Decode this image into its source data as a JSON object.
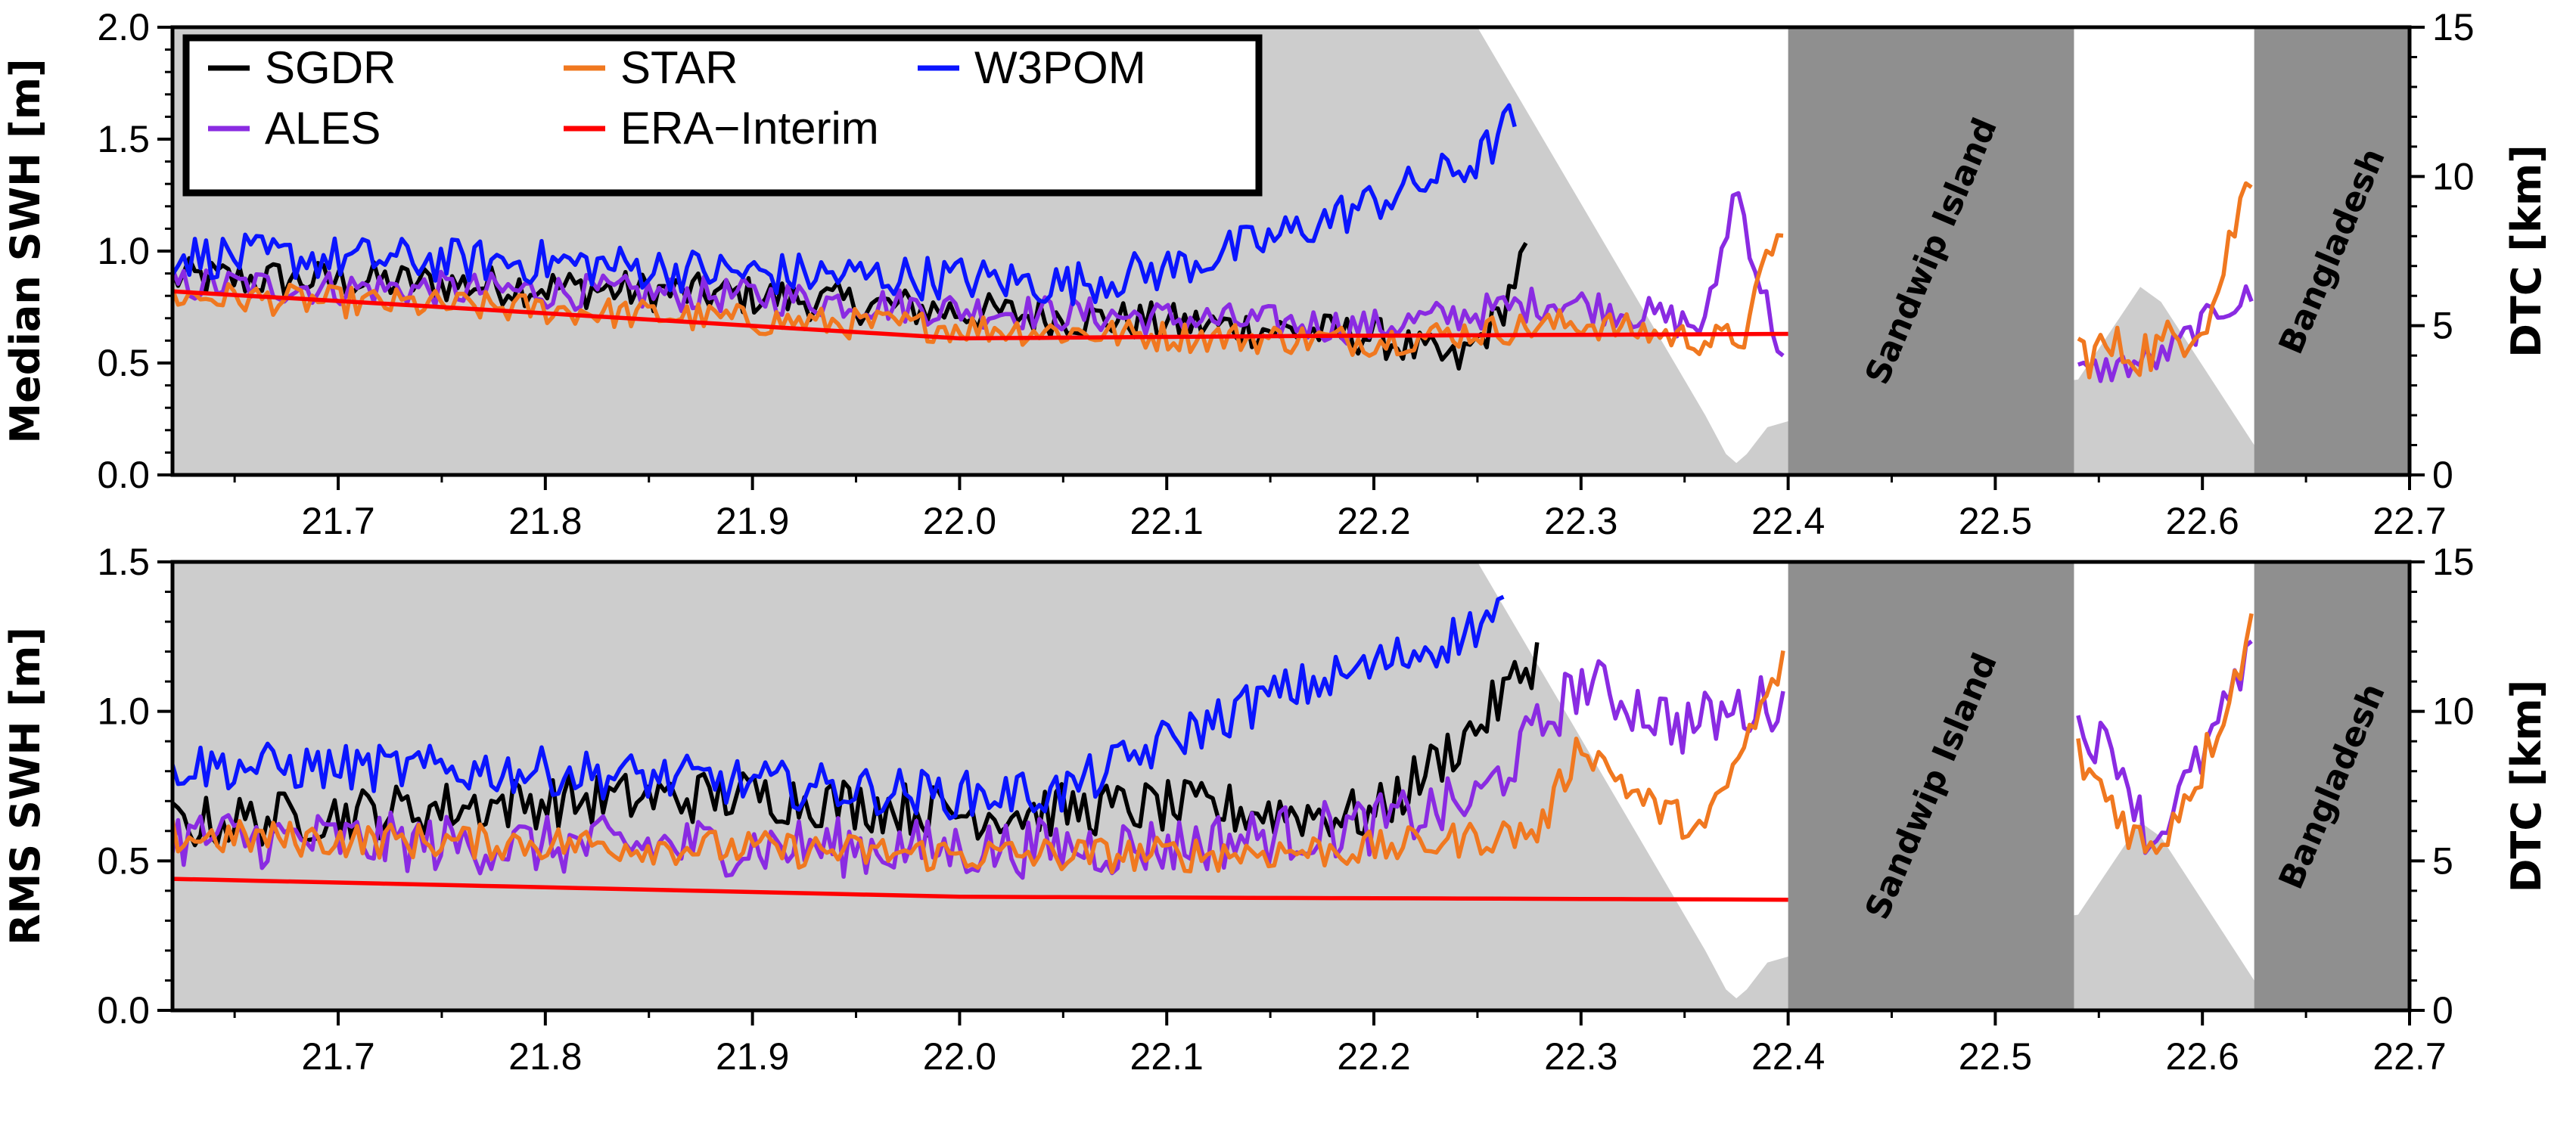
{
  "chart_data": [
    {
      "type": "line",
      "panel": "top",
      "ylabel": "Median SWH [m]",
      "y2label": "DTC [km]",
      "xlim": [
        21.62,
        22.7
      ],
      "ylim": [
        0.0,
        2.0
      ],
      "y2lim": [
        0,
        15
      ],
      "xticks": [
        "21.7",
        "21.8",
        "21.9",
        "22.0",
        "22.1",
        "22.2",
        "22.3",
        "22.4",
        "22.5",
        "22.6",
        "22.7"
      ],
      "yticks": [
        "0.0",
        "0.5",
        "1.0",
        "1.5",
        "2.0"
      ],
      "y2ticks": [
        "0",
        "5",
        "10",
        "15"
      ],
      "legend_position": "top-left",
      "land_regions": [
        {
          "label": "Sandwip Island",
          "x": [
            22.4,
            22.538
          ]
        },
        {
          "label": "Bangladesh",
          "x": [
            22.625,
            22.7
          ]
        }
      ],
      "dtc": {
        "x": [
          21.62,
          22.25,
          22.36,
          22.37,
          22.375,
          22.38,
          22.39,
          22.4,
          22.54,
          22.57,
          22.58,
          22.625
        ],
        "y": [
          15,
          15,
          2.0,
          0.7,
          0.4,
          0.7,
          1.6,
          1.8,
          3.2,
          6.3,
          5.8,
          1.0
        ]
      },
      "series": [
        {
          "name": "SGDR",
          "color": "#000000",
          "segments": [
            {
              "x0": 21.62,
              "x1": 22.275,
              "pts": [
                [
                  21.62,
                  0.88
                ],
                [
                  21.7,
                  0.87
                ],
                [
                  21.8,
                  0.84
                ],
                [
                  21.9,
                  0.8
                ],
                [
                  22.0,
                  0.73
                ],
                [
                  22.1,
                  0.68
                ],
                [
                  22.2,
                  0.62
                ],
                [
                  22.24,
                  0.5
                ],
                [
                  22.26,
                  0.7
                ],
                [
                  22.275,
                  1.03
                ]
              ],
              "noise": 0.09
            }
          ]
        },
        {
          "name": "ALES",
          "color": "#8a2be2",
          "segments": [
            {
              "x0": 21.62,
              "x1": 22.4,
              "pts": [
                [
                  21.62,
                  0.85
                ],
                [
                  21.8,
                  0.82
                ],
                [
                  21.9,
                  0.8
                ],
                [
                  22.0,
                  0.74
                ],
                [
                  22.1,
                  0.7
                ],
                [
                  22.2,
                  0.66
                ],
                [
                  22.29,
                  0.78
                ],
                [
                  22.33,
                  0.72
                ],
                [
                  22.36,
                  0.66
                ],
                [
                  22.375,
                  1.3
                ],
                [
                  22.385,
                  0.9
                ],
                [
                  22.4,
                  0.45
                ]
              ],
              "noise": 0.08
            },
            {
              "x0": 22.54,
              "x1": 22.625,
              "pts": [
                [
                  22.54,
                  0.45
                ],
                [
                  22.58,
                  0.52
                ],
                [
                  22.61,
                  0.75
                ],
                [
                  22.625,
                  0.8
                ]
              ],
              "noise": 0.07
            }
          ]
        },
        {
          "name": "STAR",
          "color": "#f07820",
          "segments": [
            {
              "x0": 21.62,
              "x1": 22.4,
              "pts": [
                [
                  21.62,
                  0.8
                ],
                [
                  21.8,
                  0.74
                ],
                [
                  21.9,
                  0.69
                ],
                [
                  22.0,
                  0.66
                ],
                [
                  22.1,
                  0.62
                ],
                [
                  22.2,
                  0.6
                ],
                [
                  22.3,
                  0.68
                ],
                [
                  22.36,
                  0.6
                ],
                [
                  22.38,
                  0.62
                ],
                [
                  22.39,
                  1.0
                ],
                [
                  22.4,
                  1.1
                ]
              ],
              "noise": 0.07
            },
            {
              "x0": 22.54,
              "x1": 22.625,
              "pts": [
                [
                  22.54,
                  0.55
                ],
                [
                  22.58,
                  0.56
                ],
                [
                  22.605,
                  0.75
                ],
                [
                  22.615,
                  1.1
                ],
                [
                  22.625,
                  1.4
                ]
              ],
              "noise": 0.12
            }
          ]
        },
        {
          "name": "ERA-Interim",
          "color": "#ff0000",
          "segments": [
            {
              "x0": 21.62,
              "x1": 22.4,
              "pts": [
                [
                  21.62,
                  0.82
                ],
                [
                  21.75,
                  0.75
                ],
                [
                  22.0,
                  0.61
                ],
                [
                  22.15,
                  0.62
                ],
                [
                  22.4,
                  0.63
                ]
              ],
              "noise": 0
            }
          ]
        },
        {
          "name": "W3POM",
          "color": "#0a14ff",
          "segments": [
            {
              "x0": 21.62,
              "x1": 22.27,
              "pts": [
                [
                  21.62,
                  0.98
                ],
                [
                  21.8,
                  0.95
                ],
                [
                  21.9,
                  0.9
                ],
                [
                  22.0,
                  0.88
                ],
                [
                  22.05,
                  0.85
                ],
                [
                  22.1,
                  0.92
                ],
                [
                  22.15,
                  1.05
                ],
                [
                  22.2,
                  1.22
                ],
                [
                  22.25,
                  1.4
                ],
                [
                  22.27,
                  1.62
                ]
              ],
              "noise": 0.1
            }
          ]
        }
      ]
    },
    {
      "type": "line",
      "panel": "bottom",
      "ylabel": "RMS SWH [m]",
      "y2label": "DTC [km]",
      "xlim": [
        21.62,
        22.7
      ],
      "ylim": [
        0.0,
        1.5
      ],
      "y2lim": [
        0,
        15
      ],
      "xticks": [
        "21.7",
        "21.8",
        "21.9",
        "22.0",
        "22.1",
        "22.2",
        "22.3",
        "22.4",
        "22.5",
        "22.6",
        "22.7"
      ],
      "yticks": [
        "0.0",
        "0.5",
        "1.0",
        "1.5"
      ],
      "y2ticks": [
        "0",
        "5",
        "10",
        "15"
      ],
      "land_regions": [
        {
          "label": "Sandwip Island",
          "x": [
            22.4,
            22.538
          ]
        },
        {
          "label": "Bangladesh",
          "x": [
            22.625,
            22.7
          ]
        }
      ],
      "dtc": {
        "x": [
          21.62,
          22.25,
          22.36,
          22.37,
          22.375,
          22.38,
          22.39,
          22.4,
          22.54,
          22.57,
          22.58,
          22.625
        ],
        "y": [
          15,
          15,
          2.0,
          0.7,
          0.4,
          0.7,
          1.6,
          1.8,
          3.2,
          6.3,
          5.8,
          1.0
        ]
      },
      "series": [
        {
          "name": "SGDR",
          "color": "#000000",
          "segments": [
            {
              "x0": 21.62,
              "x1": 22.28,
              "pts": [
                [
                  21.62,
                  0.62
                ],
                [
                  21.8,
                  0.7
                ],
                [
                  21.9,
                  0.72
                ],
                [
                  22.0,
                  0.66
                ],
                [
                  22.1,
                  0.68
                ],
                [
                  22.2,
                  0.65
                ],
                [
                  22.25,
                  0.95
                ],
                [
                  22.28,
                  1.2
                ]
              ],
              "noise": 0.09
            }
          ]
        },
        {
          "name": "ALES",
          "color": "#8a2be2",
          "segments": [
            {
              "x0": 21.62,
              "x1": 22.4,
              "pts": [
                [
                  21.62,
                  0.58
                ],
                [
                  21.8,
                  0.55
                ],
                [
                  21.9,
                  0.55
                ],
                [
                  22.0,
                  0.54
                ],
                [
                  22.1,
                  0.55
                ],
                [
                  22.2,
                  0.62
                ],
                [
                  22.25,
                  0.7
                ],
                [
                  22.3,
                  1.1
                ],
                [
                  22.35,
                  0.95
                ],
                [
                  22.4,
                  1.05
                ]
              ],
              "noise": 0.1
            },
            {
              "x0": 22.54,
              "x1": 22.625,
              "pts": [
                [
                  22.54,
                  0.95
                ],
                [
                  22.56,
                  0.85
                ],
                [
                  22.575,
                  0.55
                ],
                [
                  22.6,
                  0.85
                ],
                [
                  22.625,
                  1.2
                ]
              ],
              "noise": 0.08
            }
          ]
        },
        {
          "name": "STAR",
          "color": "#f07820",
          "segments": [
            {
              "x0": 21.62,
              "x1": 22.4,
              "pts": [
                [
                  21.62,
                  0.58
                ],
                [
                  21.8,
                  0.56
                ],
                [
                  21.9,
                  0.54
                ],
                [
                  22.0,
                  0.52
                ],
                [
                  22.1,
                  0.52
                ],
                [
                  22.2,
                  0.54
                ],
                [
                  22.28,
                  0.6
                ],
                [
                  22.3,
                  0.9
                ],
                [
                  22.33,
                  0.7
                ],
                [
                  22.36,
                  0.6
                ],
                [
                  22.4,
                  1.2
                ]
              ],
              "noise": 0.06
            },
            {
              "x0": 22.54,
              "x1": 22.625,
              "pts": [
                [
                  22.54,
                  0.85
                ],
                [
                  22.575,
                  0.52
                ],
                [
                  22.6,
                  0.82
                ],
                [
                  22.625,
                  1.3
                ]
              ],
              "noise": 0.08
            }
          ]
        },
        {
          "name": "ERA-Interim",
          "color": "#ff0000",
          "segments": [
            {
              "x0": 21.62,
              "x1": 22.4,
              "pts": [
                [
                  21.62,
                  0.44
                ],
                [
                  22.0,
                  0.38
                ],
                [
                  22.4,
                  0.37
                ]
              ],
              "noise": 0
            }
          ]
        },
        {
          "name": "W3POM",
          "color": "#0a14ff",
          "segments": [
            {
              "x0": 21.62,
              "x1": 22.265,
              "pts": [
                [
                  21.62,
                  0.82
                ],
                [
                  21.8,
                  0.8
                ],
                [
                  21.9,
                  0.76
                ],
                [
                  22.0,
                  0.72
                ],
                [
                  22.05,
                  0.73
                ],
                [
                  22.1,
                  0.9
                ],
                [
                  22.15,
                  1.05
                ],
                [
                  22.2,
                  1.15
                ],
                [
                  22.24,
                  1.25
                ],
                [
                  22.265,
                  1.35
                ]
              ],
              "noise": 0.08
            }
          ]
        }
      ]
    }
  ]
}
